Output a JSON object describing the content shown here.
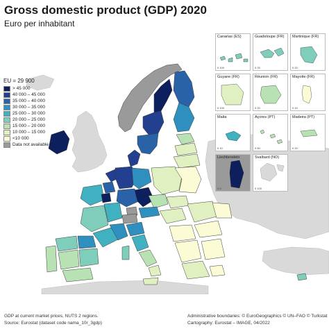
{
  "header": {
    "title": "Gross domestic product (GDP) 2020",
    "subtitle": "Euro per inhabitant"
  },
  "legend": {
    "eu_label": "EU = 29 900",
    "classes": [
      {
        "label": "> 45 000",
        "color": "#0d1f5c"
      },
      {
        "label": "40 000 – 45 000",
        "color": "#22408f"
      },
      {
        "label": "35 000 – 40 000",
        "color": "#2a62a8"
      },
      {
        "label": "30 000 – 35 000",
        "color": "#2f8fbf"
      },
      {
        "label": "25 000 – 30 000",
        "color": "#3fb1c0"
      },
      {
        "label": "20 000 – 25 000",
        "color": "#7fcdbb"
      },
      {
        "label": "15 000 – 20 000",
        "color": "#b9e2b4"
      },
      {
        "label": "10 000 – 15 000",
        "color": "#e1f0c0"
      },
      {
        "label": "<10 000",
        "color": "#fbfbd6"
      },
      {
        "label": "Data not available",
        "color": "#9a9a9a"
      }
    ]
  },
  "insets": [
    {
      "name": "Canarias (ES)",
      "scale": "0  100"
    },
    {
      "name": "Guadeloupe (FR)",
      "scale": "0  25"
    },
    {
      "name": "Martinique (FR)",
      "scale": "0  20"
    },
    {
      "name": "Guyane (FR)",
      "scale": "0  100"
    },
    {
      "name": "Réunion (FR)",
      "scale": "0  20"
    },
    {
      "name": "Mayotte (FR)",
      "scale": "0  15"
    },
    {
      "name": "Malta",
      "scale": "0  10"
    },
    {
      "name": "Açores (PT)",
      "scale": "0  50"
    },
    {
      "name": "Madeira (PT)",
      "scale": "0  20"
    },
    {
      "name": "Liechtenstein",
      "scale": "0  5"
    },
    {
      "name": "Svalbard (NO)",
      "scale": "0  100"
    }
  ],
  "footer": {
    "note": "GDP at current market prices, NUTS 2 regions.",
    "source": "Source: Eurostat (dataset code nama_10r_3gdp)",
    "boundaries": "Administrative boundaries: © EuroGeographics © UN–FAO © Turkstat",
    "cartography": "Cartography: Eurostat – IMAGE, 04/2022"
  },
  "colors": {
    "sea": "#ffffff",
    "non_eu_land": "#d9d9d9",
    "border": "#3a3a3a"
  }
}
